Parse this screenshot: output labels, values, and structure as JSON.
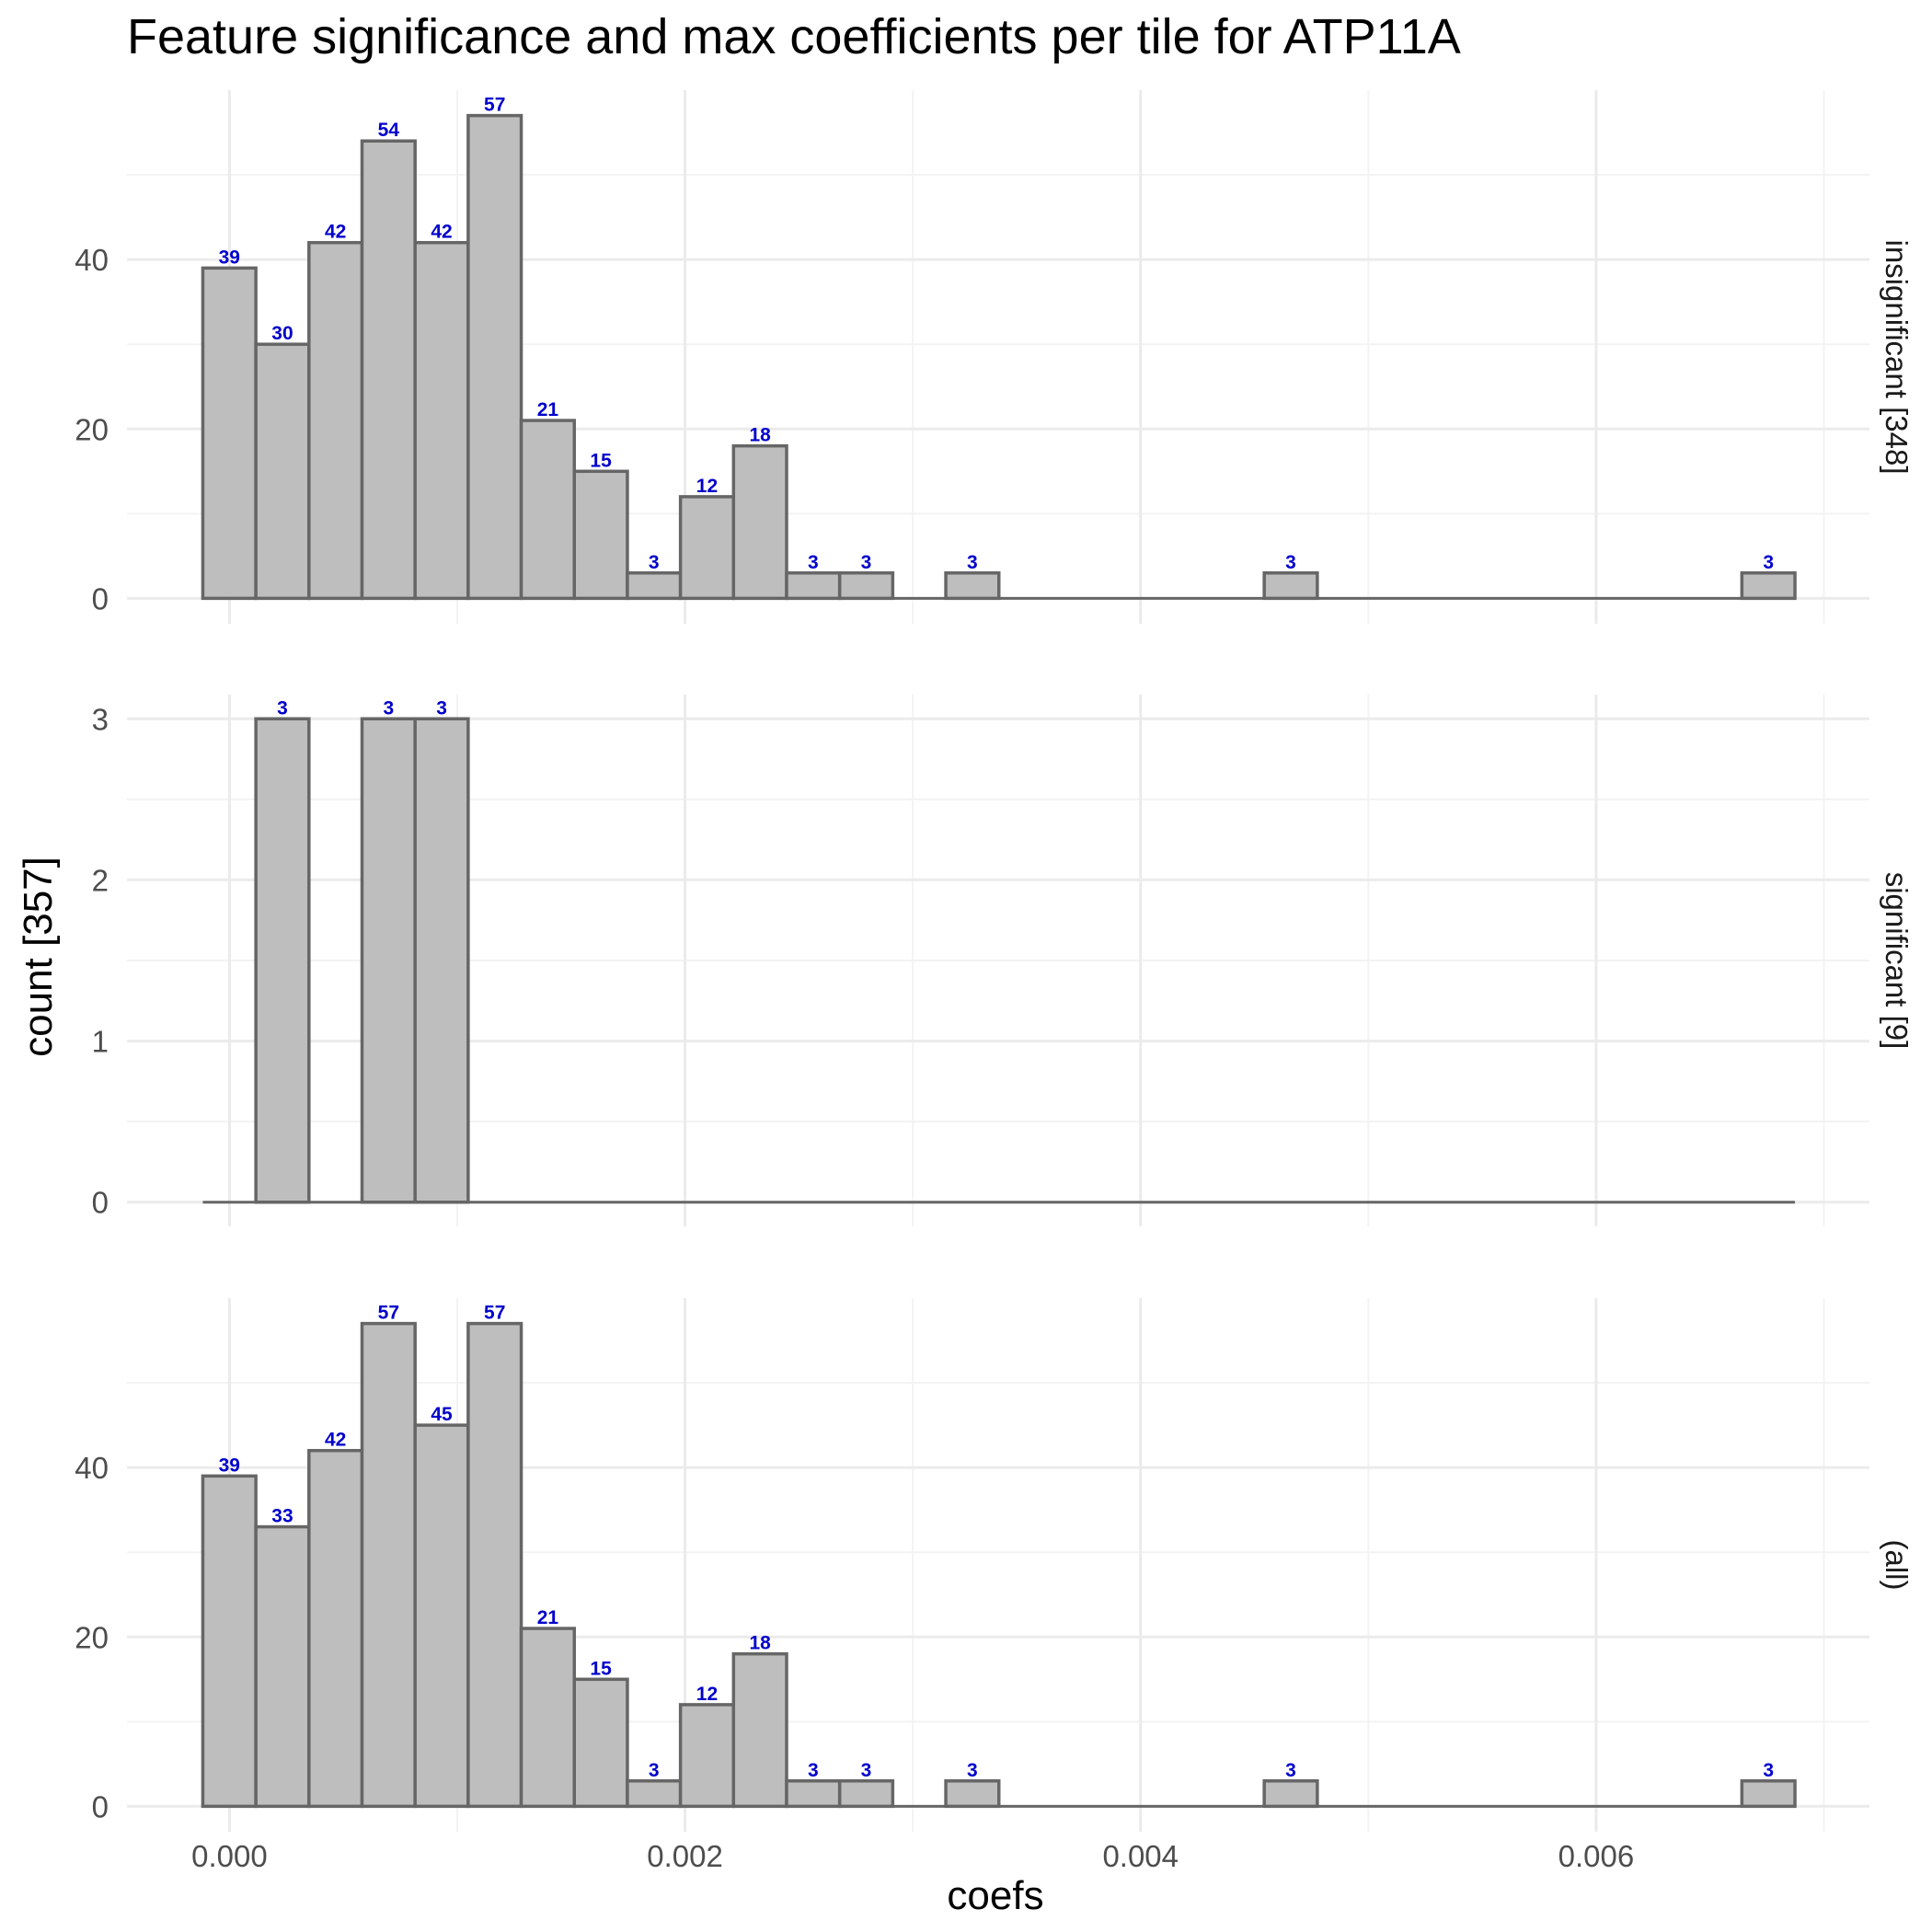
{
  "chart_data": {
    "type": "bar",
    "title": "Feature significance and max coefficients per tile for ATP11A",
    "xlabel": "coefs",
    "ylabel": "count [357]",
    "xlim": [
      -0.00045,
      0.0072
    ],
    "x_ticks": [
      0.0,
      0.002,
      0.004,
      0.006
    ],
    "x_tick_labels": [
      "0.000",
      "0.002",
      "0.004",
      "0.006"
    ],
    "bin_width": 0.000233,
    "bin_starts": [
      -0.000117,
      0.000116,
      0.000349,
      0.000582,
      0.000815,
      0.001048,
      0.001281,
      0.001514,
      0.001747,
      0.00198,
      0.002213,
      0.002446,
      0.002679,
      0.002912,
      0.003145,
      0.003378,
      0.003611,
      0.003844,
      0.004077,
      0.00431,
      0.004543,
      0.004776,
      0.005009,
      0.005242,
      0.005475,
      0.005708,
      0.005941,
      0.006174,
      0.006407,
      0.00664
    ],
    "bar_fill": "#bebebe",
    "bar_stroke": "#666666",
    "label_color": "#0000cc",
    "grid": true,
    "panels": [
      {
        "strip_label": "insignificant [348]",
        "y_ticks": [
          0,
          20,
          40
        ],
        "ylim": [
          -3,
          60
        ],
        "values": [
          39,
          30,
          42,
          54,
          42,
          57,
          21,
          15,
          3,
          12,
          18,
          3,
          3,
          0,
          3,
          0,
          0,
          0,
          0,
          0,
          3,
          0,
          0,
          0,
          0,
          0,
          0,
          0,
          0,
          3
        ]
      },
      {
        "strip_label": "significant [9]",
        "y_ticks": [
          0,
          1,
          2,
          3
        ],
        "ylim": [
          -0.15,
          3.15
        ],
        "values": [
          0,
          3,
          0,
          3,
          3,
          0,
          0,
          0,
          0,
          0,
          0,
          0,
          0,
          0,
          0,
          0,
          0,
          0,
          0,
          0,
          0,
          0,
          0,
          0,
          0,
          0,
          0,
          0,
          0,
          0
        ]
      },
      {
        "strip_label": "(all)",
        "y_ticks": [
          0,
          20,
          40
        ],
        "ylim": [
          -3,
          60
        ],
        "values": [
          39,
          33,
          42,
          57,
          45,
          57,
          21,
          15,
          3,
          12,
          18,
          3,
          3,
          0,
          3,
          0,
          0,
          0,
          0,
          0,
          3,
          0,
          0,
          0,
          0,
          0,
          0,
          0,
          0,
          3
        ]
      }
    ]
  }
}
